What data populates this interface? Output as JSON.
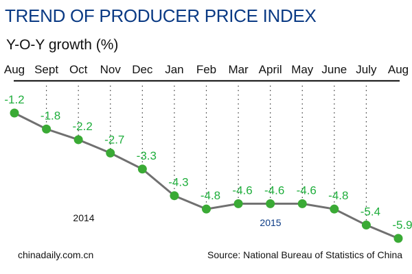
{
  "chart_data": {
    "type": "line",
    "title": "TREND OF PRODUCER PRICE INDEX",
    "ylabel": "Y-O-Y growth (%)",
    "categories": [
      "Aug",
      "Sept",
      "Oct",
      "Nov",
      "Dec",
      "Jan",
      "Feb",
      "Mar",
      "April",
      "May",
      "June",
      "July",
      "Aug"
    ],
    "values": [
      -1.2,
      -1.8,
      -2.2,
      -2.7,
      -3.3,
      -4.3,
      -4.8,
      -4.6,
      -4.6,
      -4.6,
      -4.8,
      -5.4,
      -5.9
    ],
    "value_labels": [
      "-1.2",
      "-1.8",
      "-2.2",
      "-2.7",
      "-3.3",
      "-4.3",
      "-4.8",
      "-4.6",
      "-4.6",
      "-4.6",
      "-4.8",
      "-5.4",
      "-5.9"
    ],
    "year_labels": [
      "2014",
      "2015"
    ],
    "grid": "dotted vertical",
    "colors": {
      "title": "#0a3a84",
      "line": "#707070",
      "marker": "#3aaa35",
      "value_label": "#1fae3c",
      "year_2015": "#0a3a84"
    }
  },
  "footer": {
    "site": "chinadaily.com.cn",
    "source": "Source: National Bureau of Statistics of China"
  }
}
